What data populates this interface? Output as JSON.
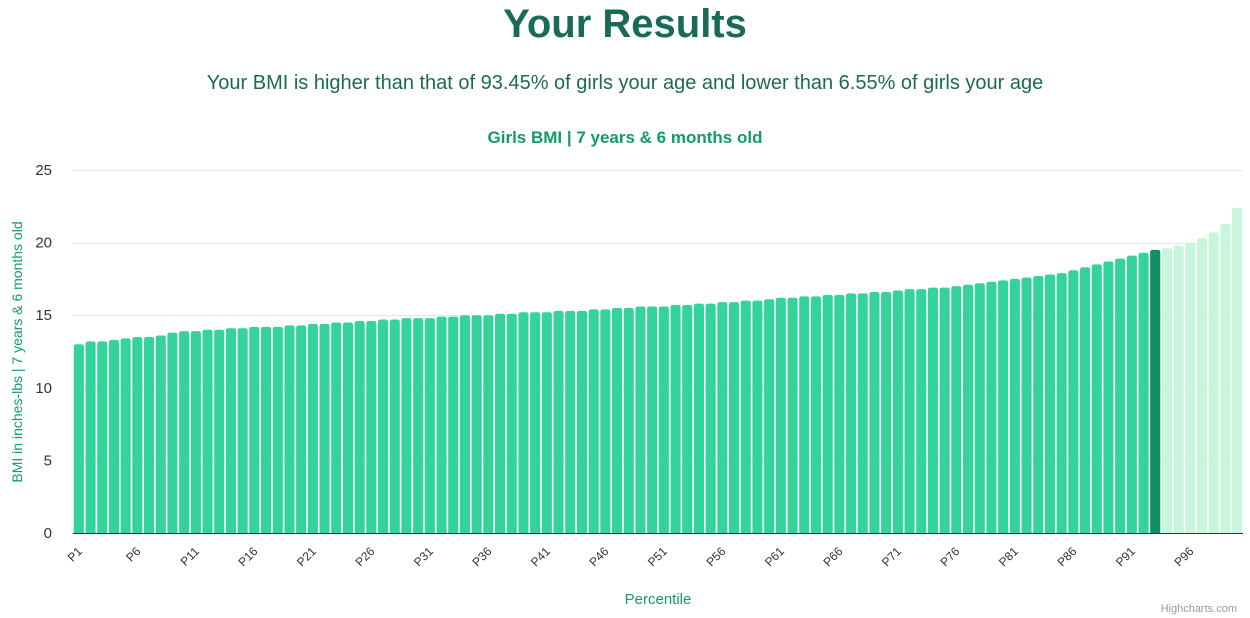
{
  "page": {
    "title": "Your Results",
    "summary": "Your BMI is higher than that of 93.45% of girls your age and lower than 6.55% of girls your age",
    "credit": "Highcharts.com"
  },
  "colors": {
    "heading": "#1a6b55",
    "accent": "#129a6c",
    "bar": "#34d39c",
    "bar_highlight": "#0f8f62",
    "bar_above": "#c8f6dd",
    "axis_text": "#333333",
    "grid": "#e6e6e6"
  },
  "chart_data": {
    "type": "bar",
    "title": "Girls BMI | 7 years & 6 months old",
    "xlabel": "Percentile",
    "ylabel": "BMI in inches-lbs | 7 years & 6 months old",
    "ylim": [
      0,
      25
    ],
    "yticks": [
      0,
      5,
      10,
      15,
      20,
      25
    ],
    "grid": true,
    "highlight_category": "P93",
    "categories": [
      "P1",
      "P2",
      "P3",
      "P4",
      "P5",
      "P6",
      "P7",
      "P8",
      "P9",
      "P10",
      "P11",
      "P12",
      "P13",
      "P14",
      "P15",
      "P16",
      "P17",
      "P18",
      "P19",
      "P20",
      "P21",
      "P22",
      "P23",
      "P24",
      "P25",
      "P26",
      "P27",
      "P28",
      "P29",
      "P30",
      "P31",
      "P32",
      "P33",
      "P34",
      "P35",
      "P36",
      "P37",
      "P38",
      "P39",
      "P40",
      "P41",
      "P42",
      "P43",
      "P44",
      "P45",
      "P46",
      "P47",
      "P48",
      "P49",
      "P50",
      "P51",
      "P52",
      "P53",
      "P54",
      "P55",
      "P56",
      "P57",
      "P58",
      "P59",
      "P60",
      "P61",
      "P62",
      "P63",
      "P64",
      "P65",
      "P66",
      "P67",
      "P68",
      "P69",
      "P70",
      "P71",
      "P72",
      "P73",
      "P74",
      "P75",
      "P76",
      "P77",
      "P78",
      "P79",
      "P80",
      "P81",
      "P82",
      "P83",
      "P84",
      "P85",
      "P86",
      "P87",
      "P88",
      "P89",
      "P90",
      "P91",
      "P92",
      "P93",
      "P94",
      "P95",
      "P96",
      "P97",
      "P98",
      "P99",
      "P100"
    ],
    "tick_labels": [
      "P1",
      "P6",
      "P11",
      "P16",
      "P21",
      "P26",
      "P31",
      "P36",
      "P41",
      "P46",
      "P51",
      "P56",
      "P61",
      "P66",
      "P71",
      "P76",
      "P81",
      "P86",
      "P91",
      "P96"
    ],
    "values": [
      13.0,
      13.2,
      13.2,
      13.3,
      13.4,
      13.5,
      13.5,
      13.6,
      13.8,
      13.9,
      13.9,
      14.0,
      14.0,
      14.1,
      14.1,
      14.2,
      14.2,
      14.2,
      14.3,
      14.3,
      14.4,
      14.4,
      14.5,
      14.5,
      14.6,
      14.6,
      14.7,
      14.7,
      14.8,
      14.8,
      14.8,
      14.9,
      14.9,
      15.0,
      15.0,
      15.0,
      15.1,
      15.1,
      15.2,
      15.2,
      15.2,
      15.3,
      15.3,
      15.3,
      15.4,
      15.4,
      15.5,
      15.5,
      15.6,
      15.6,
      15.6,
      15.7,
      15.7,
      15.8,
      15.8,
      15.9,
      15.9,
      16.0,
      16.0,
      16.1,
      16.2,
      16.2,
      16.3,
      16.3,
      16.4,
      16.4,
      16.5,
      16.5,
      16.6,
      16.6,
      16.7,
      16.8,
      16.8,
      16.9,
      16.9,
      17.0,
      17.1,
      17.2,
      17.3,
      17.4,
      17.5,
      17.6,
      17.7,
      17.8,
      17.9,
      18.1,
      18.3,
      18.5,
      18.7,
      18.9,
      19.1,
      19.3,
      19.5,
      19.6,
      19.8,
      20.0,
      20.3,
      20.7,
      21.3,
      22.4
    ]
  }
}
